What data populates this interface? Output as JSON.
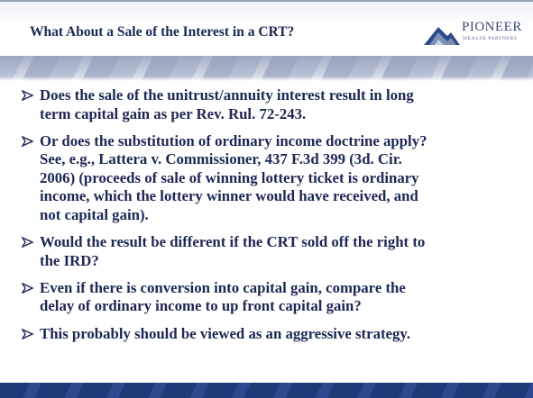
{
  "header": {
    "title": "What About a Sale of the Interest in a CRT?",
    "logo": {
      "name": "PIONEER",
      "subtitle": "WEALTH PARTNERS"
    }
  },
  "bullets": [
    {
      "lines": [
        "Does the sale of the unitrust/annuity interest result in long",
        "term capital gain as per Rev. Rul. 72-243."
      ]
    },
    {
      "lines": [
        "Or does the substitution of ordinary income doctrine apply?",
        "See, e.g., Lattera v. Commissioner, 437 F.3d 399 (3d. Cir.",
        "2006) (proceeds of sale of winning lottery ticket is ordinary",
        "income, which the lottery winner would have received, and",
        "not capital gain)."
      ]
    },
    {
      "lines": [
        "Would the result be different if the CRT sold off the right to",
        "the IRD?"
      ]
    },
    {
      "lines": [
        "Even if there is conversion into capital gain, compare the",
        "delay of ordinary income to up front capital gain?"
      ]
    },
    {
      "lines": [
        "This probably should be viewed as an aggressive strategy."
      ]
    }
  ]
}
